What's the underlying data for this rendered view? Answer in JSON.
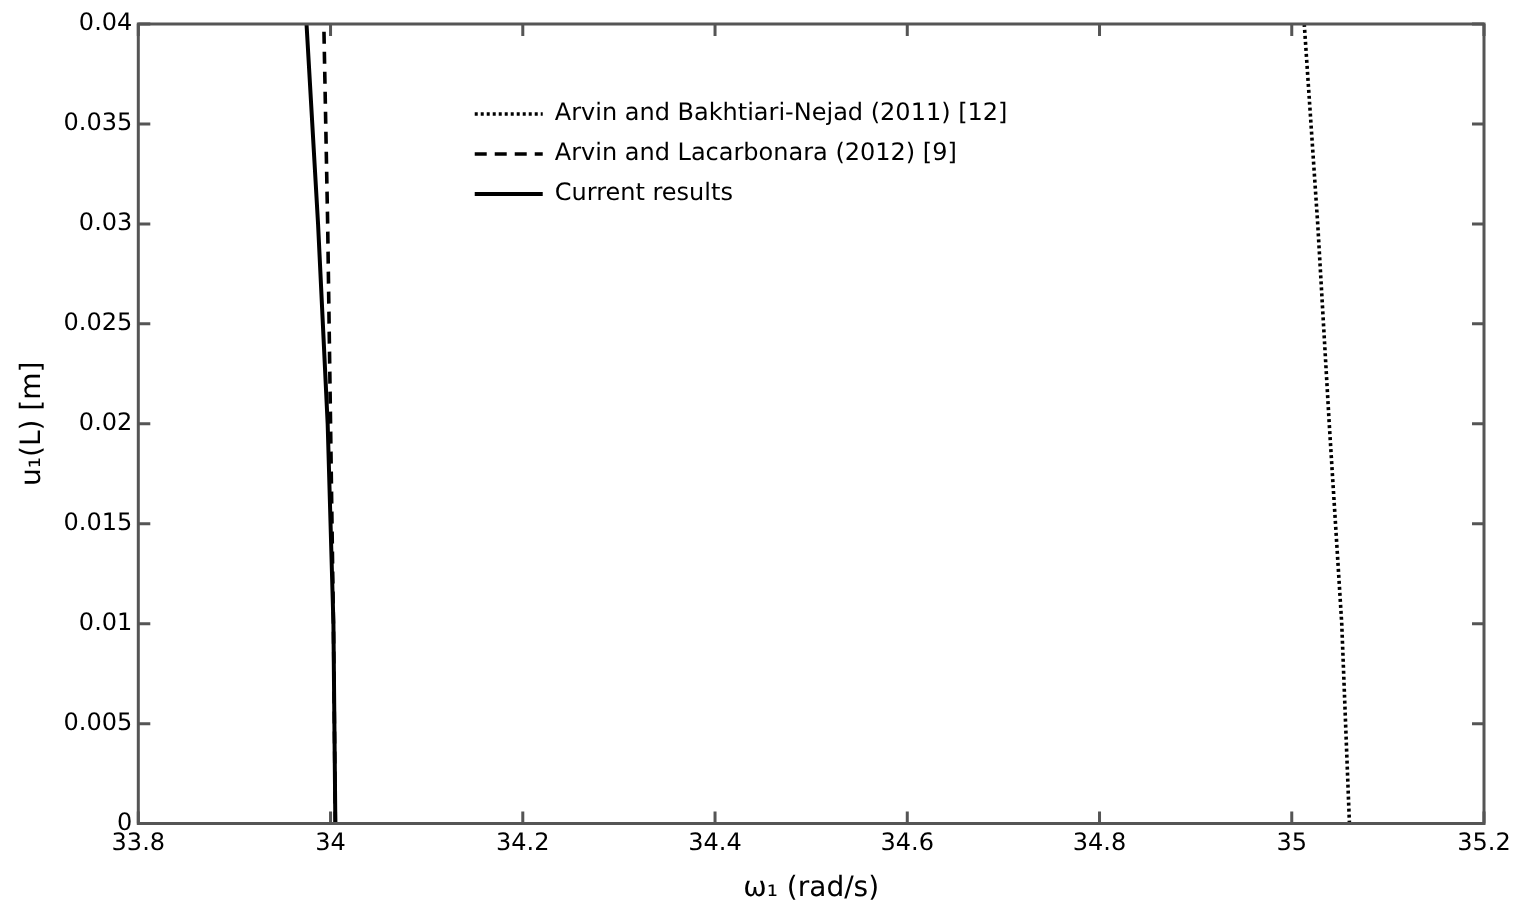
{
  "chart_data": {
    "type": "line",
    "xlabel": "ω₁ (rad/s)",
    "ylabel": "u₁(L) [m]",
    "xlim": [
      33.8,
      35.2
    ],
    "xticks": [
      33.8,
      34,
      34.2,
      34.4,
      34.6,
      34.8,
      35,
      35.2
    ],
    "ylim": [
      0,
      0.04
    ],
    "yticks": [
      0,
      0.005,
      0.01,
      0.015,
      0.02,
      0.025,
      0.03,
      0.035,
      0.04
    ],
    "grid": false,
    "legend": "top",
    "marker": "none",
    "series": [
      {
        "name": "Arvin and Bakhtiari-Nejad (2011) [12]",
        "color": "#000000",
        "line_style": "dotted",
        "x": [
          35.06,
          35.052,
          35.039,
          35.027,
          35.013
        ],
        "values": [
          0,
          0.01,
          0.02,
          0.03,
          0.04
        ]
      },
      {
        "name": "Arvin and Lacarbonara (2012) [9]",
        "color": "#000000",
        "line_style": "dashed",
        "x": [
          34.005,
          34.003,
          34,
          33.997,
          33.993
        ],
        "values": [
          0,
          0.01,
          0.02,
          0.03,
          0.04
        ]
      },
      {
        "name": "Current results",
        "color": "#000000",
        "line_style": "solid",
        "x": [
          34.005,
          34.003,
          33.997,
          33.987,
          33.975
        ],
        "values": [
          0,
          0.01,
          0.02,
          0.03,
          0.04
        ]
      }
    ]
  }
}
